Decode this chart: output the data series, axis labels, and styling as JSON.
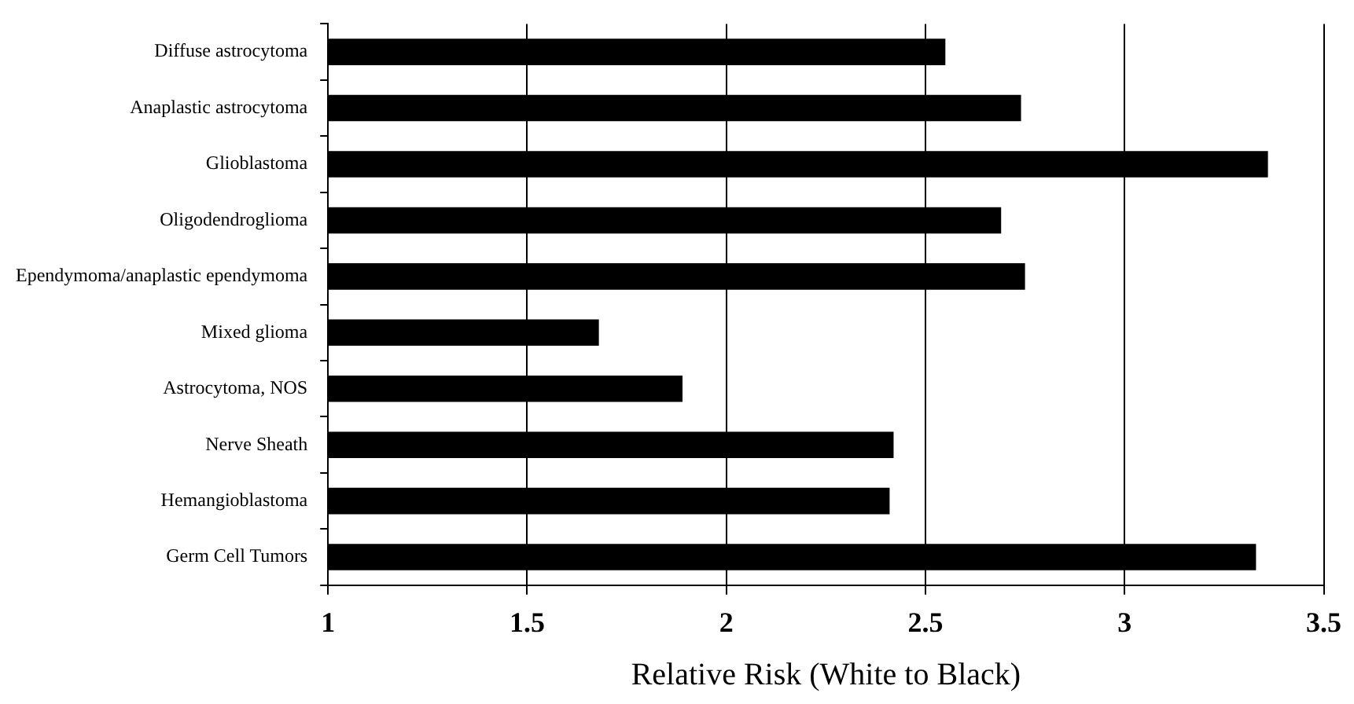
{
  "chart_data": {
    "type": "bar",
    "orientation": "horizontal",
    "xlabel": "Relative Risk (White to Black)",
    "categories": [
      "Diffuse astrocytoma",
      "Anaplastic astrocytoma",
      "Glioblastoma",
      "Oligodendroglioma",
      "Ependymoma/anaplastic ependymoma",
      "Mixed glioma",
      "Astrocytoma, NOS",
      "Nerve Sheath",
      "Hemangioblastoma",
      "Germ Cell Tumors"
    ],
    "values": [
      2.55,
      2.74,
      3.36,
      2.69,
      2.75,
      1.68,
      1.89,
      2.42,
      2.41,
      3.33
    ],
    "color": "#000000",
    "xlim": [
      1,
      3.5
    ],
    "xticks": [
      1,
      1.5,
      2,
      2.5,
      3,
      3.5
    ],
    "grid": "x",
    "legend": false
  }
}
